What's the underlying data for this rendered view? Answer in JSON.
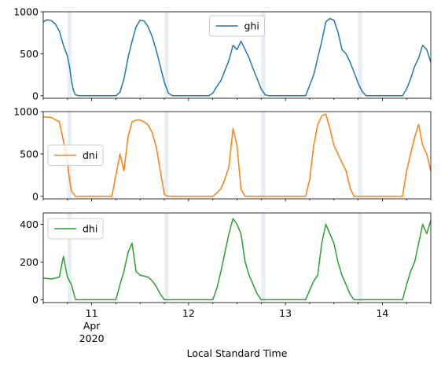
{
  "chart_data": {
    "type": "line",
    "xlabel": "Local Standard Time",
    "x_range": [
      "2020-04-10 12:00",
      "2020-04-14 12:00"
    ],
    "x_tick_labels": [
      {
        "x": "2020-04-11 00:00",
        "lines": [
          "11",
          "Apr",
          "2020"
        ]
      },
      {
        "x": "2020-04-12 00:00",
        "lines": [
          "12"
        ]
      },
      {
        "x": "2020-04-13 00:00",
        "lines": [
          "13"
        ]
      },
      {
        "x": "2020-04-14 00:00",
        "lines": [
          "14"
        ]
      }
    ],
    "shaded_spans": [
      [
        "2020-04-10 18:00",
        "2020-04-10 19:00"
      ],
      [
        "2020-04-11 18:00",
        "2020-04-11 19:00"
      ],
      [
        "2020-04-12 18:00",
        "2020-04-12 19:00"
      ],
      [
        "2020-04-13 18:00",
        "2020-04-13 19:00"
      ]
    ],
    "shade_color": "#e6eef6",
    "panels": [
      {
        "series": [
          {
            "name": "ghi",
            "color": "#1f77b4"
          }
        ],
        "ylim": [
          -30,
          1000
        ],
        "yticks": [
          "0",
          "500",
          "1000"
        ],
        "legend": "upper center",
        "points": [
          [
            "2020-04-10 12:00",
            880
          ],
          [
            "2020-04-10 13:00",
            905
          ],
          [
            "2020-04-10 14:00",
            895
          ],
          [
            "2020-04-10 15:00",
            855
          ],
          [
            "2020-04-10 16:00",
            770
          ],
          [
            "2020-04-10 17:00",
            600
          ],
          [
            "2020-04-10 18:00",
            470
          ],
          [
            "2020-04-10 18:30",
            350
          ],
          [
            "2020-04-10 19:00",
            180
          ],
          [
            "2020-04-10 19:30",
            60
          ],
          [
            "2020-04-10 20:00",
            10
          ],
          [
            "2020-04-10 21:00",
            0
          ],
          [
            "2020-04-11 06:00",
            0
          ],
          [
            "2020-04-11 07:00",
            40
          ],
          [
            "2020-04-11 08:00",
            200
          ],
          [
            "2020-04-11 09:00",
            450
          ],
          [
            "2020-04-11 10:00",
            650
          ],
          [
            "2020-04-11 11:00",
            820
          ],
          [
            "2020-04-11 12:00",
            900
          ],
          [
            "2020-04-11 13:00",
            890
          ],
          [
            "2020-04-11 14:00",
            820
          ],
          [
            "2020-04-11 15:00",
            700
          ],
          [
            "2020-04-11 16:00",
            540
          ],
          [
            "2020-04-11 17:00",
            350
          ],
          [
            "2020-04-11 18:00",
            160
          ],
          [
            "2020-04-11 19:00",
            30
          ],
          [
            "2020-04-11 20:00",
            0
          ],
          [
            "2020-04-12 05:00",
            0
          ],
          [
            "2020-04-12 06:00",
            30
          ],
          [
            "2020-04-12 07:00",
            110
          ],
          [
            "2020-04-12 08:00",
            180
          ],
          [
            "2020-04-12 09:00",
            300
          ],
          [
            "2020-04-12 10:00",
            420
          ],
          [
            "2020-04-12 11:00",
            600
          ],
          [
            "2020-04-12 12:00",
            550
          ],
          [
            "2020-04-12 13:00",
            650
          ],
          [
            "2020-04-12 14:00",
            550
          ],
          [
            "2020-04-12 15:00",
            450
          ],
          [
            "2020-04-12 16:00",
            320
          ],
          [
            "2020-04-12 17:00",
            200
          ],
          [
            "2020-04-12 18:00",
            80
          ],
          [
            "2020-04-12 19:00",
            10
          ],
          [
            "2020-04-12 20:00",
            0
          ],
          [
            "2020-04-13 05:00",
            0
          ],
          [
            "2020-04-13 07:00",
            250
          ],
          [
            "2020-04-13 09:00",
            650
          ],
          [
            "2020-04-13 10:00",
            880
          ],
          [
            "2020-04-13 11:00",
            920
          ],
          [
            "2020-04-13 12:00",
            900
          ],
          [
            "2020-04-13 13:00",
            760
          ],
          [
            "2020-04-13 14:00",
            550
          ],
          [
            "2020-04-13 15:00",
            500
          ],
          [
            "2020-04-13 16:00",
            400
          ],
          [
            "2020-04-13 17:00",
            280
          ],
          [
            "2020-04-13 18:00",
            150
          ],
          [
            "2020-04-13 19:00",
            50
          ],
          [
            "2020-04-13 20:00",
            0
          ],
          [
            "2020-04-14 05:00",
            0
          ],
          [
            "2020-04-14 06:00",
            80
          ],
          [
            "2020-04-14 07:00",
            200
          ],
          [
            "2020-04-14 08:00",
            350
          ],
          [
            "2020-04-14 09:00",
            450
          ],
          [
            "2020-04-14 10:00",
            600
          ],
          [
            "2020-04-14 11:00",
            550
          ],
          [
            "2020-04-14 12:00",
            400
          ]
        ]
      },
      {
        "series": [
          {
            "name": "dni",
            "color": "#ff7f0e"
          }
        ],
        "ylim": [
          -30,
          1000
        ],
        "yticks": [
          "0",
          "500",
          "1000"
        ],
        "legend": "center left",
        "points": [
          [
            "2020-04-10 12:00",
            940
          ],
          [
            "2020-04-10 14:00",
            930
          ],
          [
            "2020-04-10 16:00",
            880
          ],
          [
            "2020-04-10 17:00",
            650
          ],
          [
            "2020-04-10 18:00",
            400
          ],
          [
            "2020-04-10 18:30",
            200
          ],
          [
            "2020-04-10 19:00",
            60
          ],
          [
            "2020-04-10 20:00",
            0
          ],
          [
            "2020-04-11 05:00",
            0
          ],
          [
            "2020-04-11 07:00",
            500
          ],
          [
            "2020-04-11 08:00",
            300
          ],
          [
            "2020-04-11 09:00",
            700
          ],
          [
            "2020-04-11 10:00",
            880
          ],
          [
            "2020-04-11 11:00",
            900
          ],
          [
            "2020-04-11 12:00",
            900
          ],
          [
            "2020-04-11 13:00",
            880
          ],
          [
            "2020-04-11 14:00",
            840
          ],
          [
            "2020-04-11 15:00",
            750
          ],
          [
            "2020-04-11 16:00",
            580
          ],
          [
            "2020-04-11 17:00",
            300
          ],
          [
            "2020-04-11 18:00",
            20
          ],
          [
            "2020-04-11 19:00",
            0
          ],
          [
            "2020-04-12 04:00",
            0
          ],
          [
            "2020-04-12 06:00",
            0
          ],
          [
            "2020-04-12 07:00",
            40
          ],
          [
            "2020-04-12 08:00",
            90
          ],
          [
            "2020-04-12 09:00",
            200
          ],
          [
            "2020-04-12 10:00",
            350
          ],
          [
            "2020-04-12 11:00",
            800
          ],
          [
            "2020-04-12 12:00",
            600
          ],
          [
            "2020-04-12 13:00",
            80
          ],
          [
            "2020-04-12 14:00",
            0
          ],
          [
            "2020-04-13 05:00",
            0
          ],
          [
            "2020-04-13 06:00",
            200
          ],
          [
            "2020-04-13 07:00",
            600
          ],
          [
            "2020-04-13 08:00",
            850
          ],
          [
            "2020-04-13 09:00",
            950
          ],
          [
            "2020-04-13 10:00",
            970
          ],
          [
            "2020-04-13 11:00",
            800
          ],
          [
            "2020-04-13 12:00",
            600
          ],
          [
            "2020-04-13 13:00",
            500
          ],
          [
            "2020-04-13 14:00",
            400
          ],
          [
            "2020-04-13 15:00",
            300
          ],
          [
            "2020-04-13 16:00",
            100
          ],
          [
            "2020-04-13 17:00",
            0
          ],
          [
            "2020-04-14 05:00",
            0
          ],
          [
            "2020-04-14 06:00",
            300
          ],
          [
            "2020-04-14 07:00",
            500
          ],
          [
            "2020-04-14 08:00",
            700
          ],
          [
            "2020-04-14 09:00",
            850
          ],
          [
            "2020-04-14 10:00",
            600
          ],
          [
            "2020-04-14 11:00",
            500
          ],
          [
            "2020-04-14 12:00",
            300
          ]
        ]
      },
      {
        "series": [
          {
            "name": "dhi",
            "color": "#2ca02c"
          }
        ],
        "ylim": [
          -15,
          460
        ],
        "yticks": [
          "0",
          "200",
          "400"
        ],
        "legend": "upper left",
        "points": [
          [
            "2020-04-10 12:00",
            115
          ],
          [
            "2020-04-10 14:00",
            110
          ],
          [
            "2020-04-10 16:00",
            120
          ],
          [
            "2020-04-10 17:00",
            230
          ],
          [
            "2020-04-10 18:00",
            120
          ],
          [
            "2020-04-10 19:00",
            80
          ],
          [
            "2020-04-10 20:00",
            0
          ],
          [
            "2020-04-11 06:00",
            0
          ],
          [
            "2020-04-11 07:00",
            80
          ],
          [
            "2020-04-11 08:00",
            150
          ],
          [
            "2020-04-11 09:00",
            250
          ],
          [
            "2020-04-11 10:00",
            300
          ],
          [
            "2020-04-11 11:00",
            150
          ],
          [
            "2020-04-11 12:00",
            130
          ],
          [
            "2020-04-11 13:00",
            125
          ],
          [
            "2020-04-11 14:00",
            120
          ],
          [
            "2020-04-11 15:00",
            100
          ],
          [
            "2020-04-11 16:00",
            70
          ],
          [
            "2020-04-11 17:00",
            30
          ],
          [
            "2020-04-11 18:00",
            0
          ],
          [
            "2020-04-12 06:00",
            0
          ],
          [
            "2020-04-12 07:00",
            60
          ],
          [
            "2020-04-12 08:00",
            150
          ],
          [
            "2020-04-12 09:00",
            250
          ],
          [
            "2020-04-12 10:00",
            350
          ],
          [
            "2020-04-12 11:00",
            430
          ],
          [
            "2020-04-12 12:00",
            400
          ],
          [
            "2020-04-12 13:00",
            350
          ],
          [
            "2020-04-12 14:00",
            200
          ],
          [
            "2020-04-12 15:00",
            130
          ],
          [
            "2020-04-12 16:00",
            80
          ],
          [
            "2020-04-12 17:00",
            30
          ],
          [
            "2020-04-12 18:00",
            0
          ],
          [
            "2020-04-13 05:00",
            0
          ],
          [
            "2020-04-13 06:00",
            50
          ],
          [
            "2020-04-13 07:00",
            100
          ],
          [
            "2020-04-13 08:00",
            130
          ],
          [
            "2020-04-13 09:00",
            300
          ],
          [
            "2020-04-13 10:00",
            400
          ],
          [
            "2020-04-13 11:00",
            350
          ],
          [
            "2020-04-13 12:00",
            300
          ],
          [
            "2020-04-13 13:00",
            200
          ],
          [
            "2020-04-13 14:00",
            130
          ],
          [
            "2020-04-13 15:00",
            80
          ],
          [
            "2020-04-13 16:00",
            30
          ],
          [
            "2020-04-13 17:00",
            0
          ],
          [
            "2020-04-14 05:00",
            0
          ],
          [
            "2020-04-14 06:00",
            80
          ],
          [
            "2020-04-14 07:00",
            150
          ],
          [
            "2020-04-14 08:00",
            200
          ],
          [
            "2020-04-14 09:00",
            300
          ],
          [
            "2020-04-14 10:00",
            400
          ],
          [
            "2020-04-14 11:00",
            350
          ],
          [
            "2020-04-14 12:00",
            420
          ]
        ]
      }
    ]
  }
}
